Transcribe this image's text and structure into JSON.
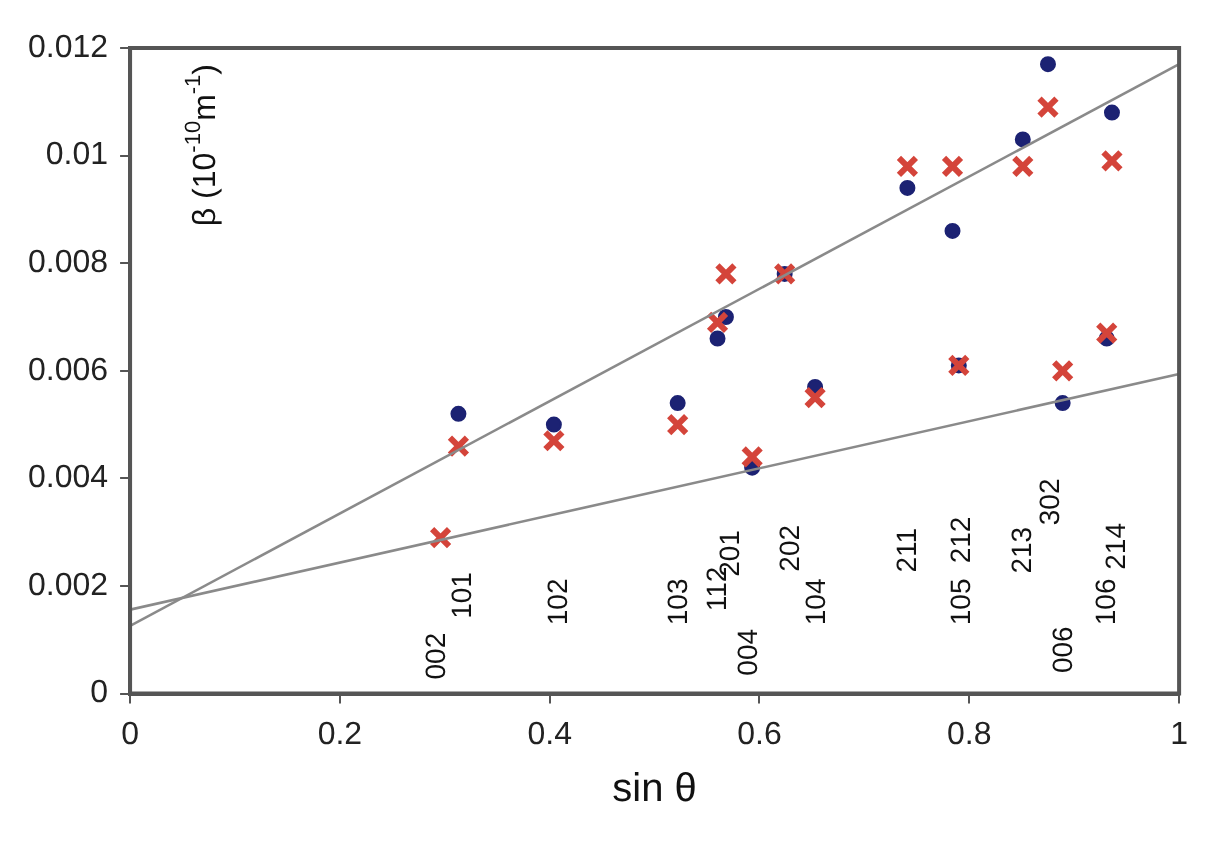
{
  "chart_data": {
    "type": "scatter",
    "xlabel": "sin θ",
    "ylabel": "β (10$^{-10}$m$^{-1}$)",
    "xlim": [
      0,
      1
    ],
    "xticks": [
      0,
      0.2,
      0.4,
      0.6,
      0.8,
      1
    ],
    "ylim": [
      0,
      0.012
    ],
    "yticks": [
      0,
      0.002,
      0.004,
      0.006,
      0.008,
      0.01,
      0.012
    ],
    "grid": false,
    "legend": false,
    "series": [
      {
        "type": "scatter",
        "marker": "circle",
        "color": "#1c2273",
        "x": [
          0.313,
          0.404,
          0.522,
          0.56,
          0.568,
          0.593,
          0.624,
          0.653,
          0.741,
          0.784,
          0.79,
          0.851,
          0.875,
          0.889,
          0.931,
          0.936
        ],
        "values": [
          0.0052,
          0.005,
          0.0054,
          0.0066,
          0.007,
          0.0042,
          0.0078,
          0.0057,
          0.0094,
          0.0086,
          0.0061,
          0.0103,
          0.0117,
          0.0054,
          0.0066,
          0.0108
        ]
      },
      {
        "type": "scatter",
        "marker": "cross",
        "color": "#d4443a",
        "x": [
          0.296,
          0.313,
          0.404,
          0.522,
          0.56,
          0.568,
          0.593,
          0.624,
          0.653,
          0.741,
          0.784,
          0.79,
          0.851,
          0.875,
          0.889,
          0.931,
          0.936
        ],
        "values": [
          0.0029,
          0.0046,
          0.0047,
          0.005,
          0.0069,
          0.0078,
          0.0044,
          0.0078,
          0.0055,
          0.0098,
          0.0098,
          0.0061,
          0.0098,
          0.0109,
          0.006,
          0.0067,
          0.0099
        ]
      },
      {
        "type": "line",
        "marker": "none",
        "line_style": "solid",
        "color": "#8a8a8a",
        "x": [
          0,
          1
        ],
        "values": [
          0.00126,
          0.0117
        ]
      },
      {
        "type": "line",
        "marker": "none",
        "line_style": "solid",
        "color": "#8a8a8a",
        "x": [
          0,
          1
        ],
        "values": [
          0.00156,
          0.00594
        ]
      }
    ],
    "annotations": [
      "002",
      "101",
      "102",
      "103",
      "112",
      "201",
      "004",
      "202",
      "104",
      "211",
      "105",
      "212",
      "213",
      "302",
      "006",
      "106",
      "214"
    ]
  }
}
